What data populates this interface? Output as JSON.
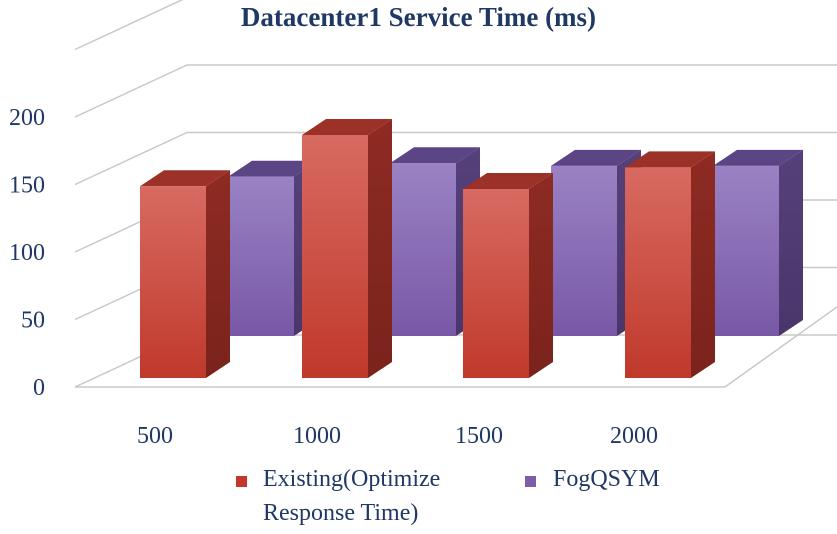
{
  "chart_data": {
    "type": "bar",
    "title": "Datacenter1 Service Time (ms)",
    "categories": [
      "500",
      "1000",
      "1500",
      "2000"
    ],
    "series": [
      {
        "name": "Existing(Optimize Response Time)",
        "values": [
          142,
          180,
          140,
          156
        ],
        "color": "#c0392b"
      },
      {
        "name": "FogQSYM",
        "values": [
          118,
          128,
          126,
          126
        ],
        "color": "#7b5ea7"
      }
    ],
    "yticks": [
      "0",
      "50",
      "100",
      "150",
      "200"
    ],
    "ylim": [
      0,
      200
    ],
    "grid": true,
    "legend_position": "bottom"
  },
  "legend": {
    "existing_line1": "Existing(Optimize",
    "existing_line2": "Response Time)",
    "fog": "FogQSYM"
  }
}
